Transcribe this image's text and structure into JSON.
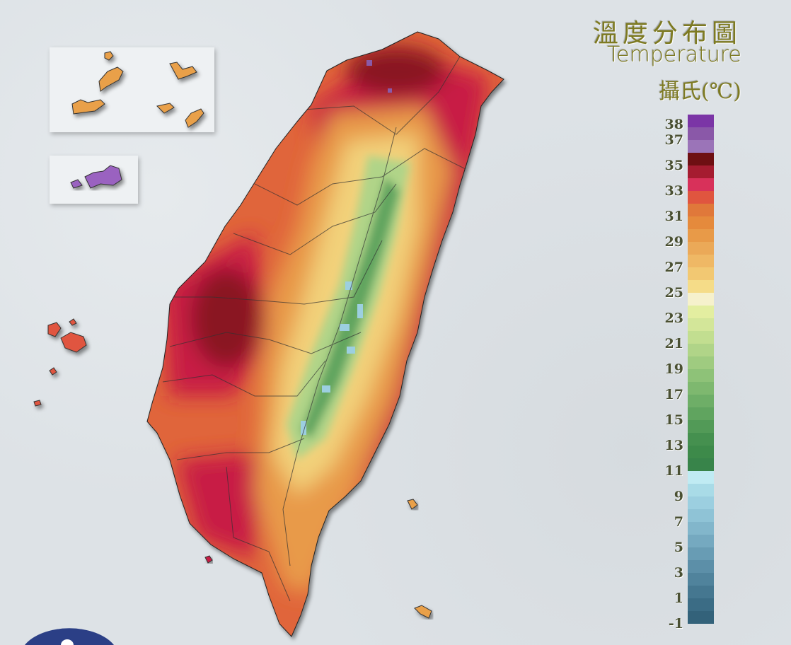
{
  "title": {
    "chinese": "溫度分布圖",
    "english": "Temperature",
    "unit": "攝氏(℃)"
  },
  "legend": {
    "labels": [
      "38",
      "37",
      "35",
      "33",
      "31",
      "29",
      "27",
      "25",
      "23",
      "21",
      "19",
      "17",
      "15",
      "13",
      "11",
      "9",
      "7",
      "5",
      "3",
      "1",
      "-1"
    ],
    "label_values": [
      38,
      37,
      35,
      33,
      31,
      29,
      27,
      25,
      23,
      21,
      19,
      17,
      15,
      13,
      11,
      9,
      7,
      5,
      3,
      1,
      -1
    ],
    "range": [
      -1,
      39
    ],
    "colors_top_to_bottom": [
      "#7b35a6",
      "#8a58a8",
      "#9b74b8",
      "#6e0f12",
      "#a51c30",
      "#d8315a",
      "#e0553f",
      "#e0783a",
      "#e58a3c",
      "#e89a48",
      "#eba958",
      "#efb865",
      "#f2c872",
      "#f5dc88",
      "#f6f1cc",
      "#e3eea0",
      "#d3e699",
      "#c2de90",
      "#b0d488",
      "#9fcb80",
      "#8ec278",
      "#7eb86f",
      "#6eae67",
      "#60a45f",
      "#529a57",
      "#45904f",
      "#3d8a4a",
      "#38844a",
      "#c0ebf3",
      "#a9dbe7",
      "#9ccfe0",
      "#8fc3d6",
      "#82b6cb",
      "#75a9c0",
      "#689cb4",
      "#5c8fa8",
      "#50839c",
      "#457790",
      "#3b6c85",
      "#33627a"
    ]
  },
  "map": {
    "colors": {
      "hot": "#c81e45",
      "very_hot": "#8a1424",
      "warm": "#e0653a",
      "mild": "#eba958",
      "cool": "#9fcb80",
      "cold": "#45904f",
      "peak": "#9ccfe0",
      "outer_islands": "#e9a04a",
      "kinmen": "#9a62c0"
    }
  },
  "logo": {
    "color": "#2b3f86"
  }
}
